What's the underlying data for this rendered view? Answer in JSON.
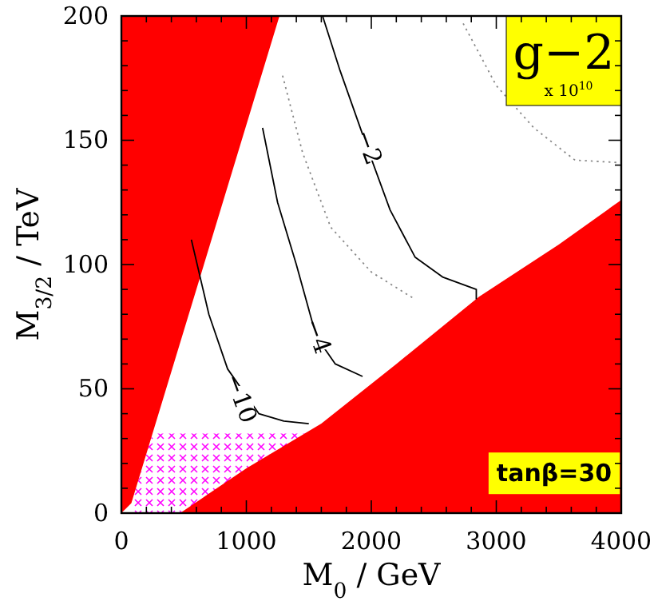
{
  "chart_data": {
    "type": "line",
    "title": "g−2",
    "subtitle": "x 10$^{10}$",
    "xlabel": "M$_{0}$ / GeV",
    "ylabel": "M$_{3/2}$ / TeV",
    "xlim": [
      0,
      4000
    ],
    "ylim": [
      0,
      200
    ],
    "xticks": [
      0,
      {
        "value": 200,
        "label": null
      },
      {
        "value": 400,
        "label": null
      },
      {
        "value": 600,
        "label": null
      },
      {
        "value": 800,
        "label": null
      },
      1000,
      {
        "value": 1200,
        "label": null
      },
      {
        "value": 1400,
        "label": null
      },
      {
        "value": 1600,
        "label": null
      },
      {
        "value": 1800,
        "label": null
      },
      2000,
      {
        "value": 2200,
        "label": null
      },
      {
        "value": 2400,
        "label": null
      },
      {
        "value": 2600,
        "label": null
      },
      {
        "value": 2800,
        "label": null
      },
      3000,
      {
        "value": 3200,
        "label": null
      },
      {
        "value": 3400,
        "label": null
      },
      {
        "value": 3600,
        "label": null
      },
      {
        "value": 3800,
        "label": null
      },
      4000
    ],
    "yticks": [
      0,
      {
        "value": 10,
        "label": null
      },
      {
        "value": 20,
        "label": null
      },
      {
        "value": 30,
        "label": null
      },
      {
        "value": 40,
        "label": null
      },
      50,
      {
        "value": 60,
        "label": null
      },
      {
        "value": 70,
        "label": null
      },
      {
        "value": 80,
        "label": null
      },
      {
        "value": 90,
        "label": null
      },
      100,
      {
        "value": 110,
        "label": null
      },
      {
        "value": 120,
        "label": null
      },
      {
        "value": 130,
        "label": null
      },
      {
        "value": 140,
        "label": null
      },
      150,
      {
        "value": 160,
        "label": null
      },
      {
        "value": 170,
        "label": null
      },
      {
        "value": 180,
        "label": null
      },
      {
        "value": 190,
        "label": null
      },
      200
    ],
    "series": [
      {
        "type": "area",
        "color": "#ff00ff",
        "x": [
          80,
          249,
          1500
        ],
        "values": [
          4,
          32,
          32
        ]
      },
      {
        "type": "area",
        "color": "#ff0000",
        "x": [
          470,
          1000,
          1600,
          2200,
          2860,
          3500,
          4000
        ],
        "values": [
          0,
          18,
          36,
          60,
          87,
          108,
          126
        ]
      },
      {
        "type": "area",
        "color": "#ff0000",
        "x": [
          0,
          1265,
          80,
          0
        ],
        "values": [
          200,
          200,
          4,
          0
        ]
      },
      {
        "type": "line",
        "color": "#000000",
        "line_style": "solid",
        "x": [
          1610,
          1750,
          1968,
          2150,
          2350,
          2570,
          2840,
          2840
        ],
        "values": [
          200,
          178,
          147,
          122,
          103,
          95,
          90,
          86
        ]
      },
      {
        "type": "line",
        "color": "#000000",
        "line_style": "solid",
        "x": [
          1130,
          1250,
          1400,
          1560,
          1712,
          1930
        ],
        "values": [
          155,
          125,
          100,
          71,
          60,
          55
        ]
      },
      {
        "type": "line",
        "color": "#000000",
        "line_style": "solid",
        "x": [
          560,
          700,
          850,
          1100,
          1300,
          1500
        ],
        "values": [
          110,
          80,
          58,
          40,
          37,
          36
        ]
      },
      {
        "type": "line",
        "color": "#888888",
        "line_style": "dotted",
        "x": [
          2735,
          3000,
          3300,
          3630,
          3990
        ],
        "values": [
          197,
          172,
          155,
          142,
          141
        ]
      },
      {
        "type": "line",
        "color": "#888888",
        "line_style": "dotted",
        "x": [
          1290,
          1450,
          1675,
          2000,
          2350
        ],
        "values": [
          176,
          145,
          115,
          97,
          86
        ]
      }
    ],
    "annotations": [
      {
        "text": "−2",
        "x": 1968,
        "y": 147
      },
      {
        "text": "−4",
        "x": 1560,
        "y": 71
      },
      {
        "text": "−10",
        "x": 945,
        "y": 46
      },
      "tanβ=30"
    ]
  }
}
